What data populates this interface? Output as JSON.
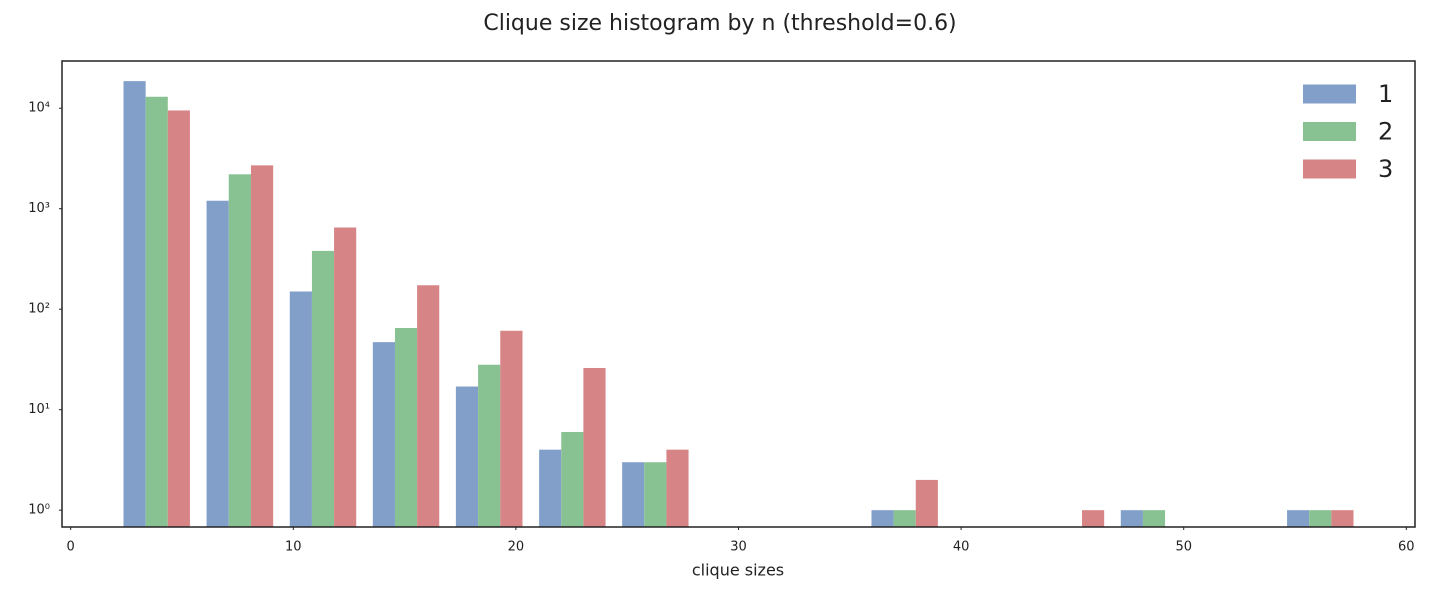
{
  "chart_data": {
    "type": "histogram",
    "title": "Clique size histogram by n (threshold=0.6)",
    "x_label": "clique sizes",
    "bins": [
      2,
      5.73,
      9.47,
      13.2,
      16.93,
      20.67,
      24.4,
      28.13,
      31.87,
      35.6,
      39.33,
      43.07,
      46.8,
      50.53,
      54.27,
      58
    ],
    "series": [
      {
        "name": "1",
        "color": "#829fca",
        "values": [
          18600,
          1200,
          150,
          47,
          17,
          4,
          3,
          0,
          0,
          1,
          0,
          0,
          1,
          0,
          1
        ]
      },
      {
        "name": "2",
        "color": "#88c292",
        "values": [
          13000,
          2200,
          380,
          65,
          28,
          6,
          3,
          0,
          0,
          1,
          0,
          0,
          1,
          0,
          1
        ]
      },
      {
        "name": "3",
        "color": "#d68485",
        "values": [
          9500,
          2700,
          650,
          173,
          61,
          26,
          4,
          0,
          0,
          2,
          0,
          1,
          0,
          0,
          1
        ]
      }
    ],
    "xlim": [
      -0.39,
      60.39
    ],
    "xticks": [
      0,
      10,
      20,
      30,
      40,
      50,
      60
    ],
    "ylim": [
      0.68,
      29500
    ],
    "yticks": [
      {
        "value": 1,
        "label": "10⁰"
      },
      {
        "value": 10,
        "label": "10¹"
      },
      {
        "value": 100,
        "label": "10²"
      },
      {
        "value": 1000,
        "label": "10³"
      },
      {
        "value": 10000,
        "label": "10⁴"
      }
    ],
    "log_y": true,
    "grid": false,
    "legend": "upper right"
  }
}
